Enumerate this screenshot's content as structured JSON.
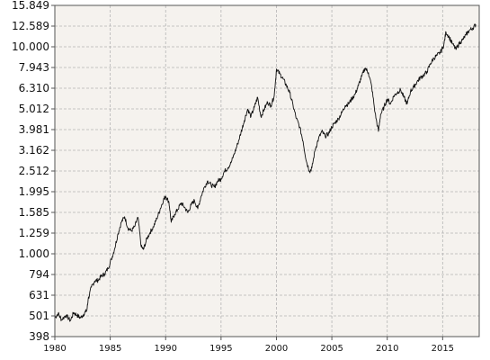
{
  "chart_data": {
    "type": "line",
    "title": "",
    "xlabel": "",
    "ylabel": "",
    "y_scale": "log",
    "xlim": [
      1980,
      2018.3
    ],
    "ylim": [
      398,
      15849
    ],
    "grid": true,
    "x_ticks": [
      "1980",
      "1985",
      "1990",
      "1995",
      "2000",
      "2005",
      "2010",
      "2015"
    ],
    "y_ticks": [
      "15.849",
      "12.589",
      "10.000",
      "7.943",
      "6.310",
      "5.012",
      "3.981",
      "3.162",
      "2.512",
      "1.995",
      "1.585",
      "1.259",
      "1.000",
      "794",
      "631",
      "501",
      "398"
    ],
    "colors": {
      "line": "#111111",
      "plot_bg": "#f5f2ee",
      "grid": "#b5b5b5",
      "axis": "#555555"
    },
    "series": [
      {
        "x": [
          1980.0,
          1980.3,
          1980.6,
          1981.0,
          1981.4,
          1981.7,
          1982.0,
          1982.3,
          1982.6,
          1982.9,
          1983.0,
          1983.3,
          1983.6,
          1983.9,
          1984.2,
          1984.5,
          1984.8,
          1985.1,
          1985.4,
          1985.7,
          1986.0,
          1986.3,
          1986.6,
          1986.9,
          1987.2,
          1987.5,
          1987.8,
          1988.0,
          1988.3,
          1988.6,
          1988.9,
          1989.2,
          1989.5,
          1989.8,
          1990.0,
          1990.3,
          1990.5,
          1990.8,
          1991.1,
          1991.4,
          1991.7,
          1992.0,
          1992.3,
          1992.6,
          1992.9,
          1993.2,
          1993.5,
          1993.8,
          1994.1,
          1994.4,
          1994.7,
          1995.0,
          1995.3,
          1995.6,
          1995.9,
          1996.2,
          1996.5,
          1996.8,
          1997.1,
          1997.4,
          1997.7,
          1998.0,
          1998.3,
          1998.6,
          1998.9,
          1999.2,
          1999.5,
          1999.8,
          2000.0,
          2000.3,
          2000.6,
          2000.9,
          2001.2,
          2001.5,
          2001.8,
          2002.1,
          2002.4,
          2002.7,
          2003.0,
          2003.2,
          2003.5,
          2003.8,
          2004.1,
          2004.4,
          2004.7,
          2005.0,
          2005.3,
          2005.6,
          2005.9,
          2006.2,
          2006.5,
          2006.8,
          2007.1,
          2007.4,
          2007.7,
          2008.0,
          2008.3,
          2008.6,
          2008.9,
          2009.2,
          2009.4,
          2009.7,
          2010.0,
          2010.3,
          2010.6,
          2010.9,
          2011.2,
          2011.5,
          2011.8,
          2012.1,
          2012.4,
          2012.7,
          2013.0,
          2013.3,
          2013.6,
          2013.9,
          2014.2,
          2014.5,
          2014.8,
          2015.1,
          2015.3,
          2015.6,
          2015.9,
          2016.2,
          2016.5,
          2016.8,
          2017.1,
          2017.4,
          2017.7,
          2018.0
        ],
        "y": [
          490,
          515,
          480,
          505,
          475,
          520,
          505,
          490,
          510,
          535,
          600,
          690,
          740,
          745,
          780,
          800,
          850,
          940,
          1060,
          1250,
          1420,
          1510,
          1330,
          1290,
          1350,
          1500,
          1080,
          1050,
          1180,
          1270,
          1350,
          1480,
          1640,
          1820,
          1900,
          1780,
          1420,
          1550,
          1640,
          1760,
          1680,
          1580,
          1720,
          1810,
          1650,
          1900,
          2100,
          2250,
          2150,
          2100,
          2250,
          2300,
          2500,
          2600,
          2750,
          3050,
          3400,
          3850,
          4400,
          5000,
          4600,
          5100,
          5700,
          4600,
          5000,
          5400,
          5200,
          5800,
          7800,
          7400,
          7000,
          6500,
          6000,
          5200,
          4500,
          4100,
          3500,
          2800,
          2500,
          2600,
          3200,
          3600,
          3900,
          3700,
          3800,
          4100,
          4300,
          4500,
          4800,
          5200,
          5300,
          5600,
          5900,
          6500,
          7200,
          7900,
          7500,
          6400,
          4800,
          3900,
          4700,
          5100,
          5600,
          5300,
          5800,
          6000,
          6200,
          5700,
          5300,
          6100,
          6400,
          6800,
          7100,
          7300,
          7600,
          8300,
          8800,
          9100,
          9400,
          10200,
          11800,
          11100,
          10300,
          9700,
          10400,
          10800,
          11400,
          12000,
          12300,
          12800
        ]
      }
    ]
  }
}
